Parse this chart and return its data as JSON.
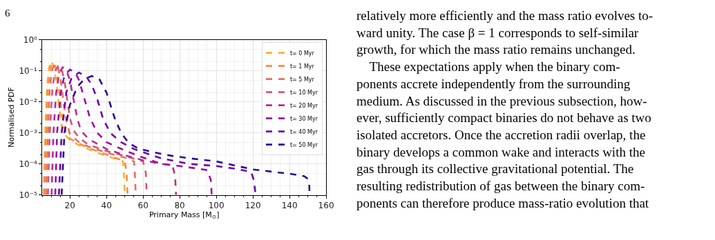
{
  "chart_data": {
    "type": "line",
    "xlabel": "Primary Mass [M$_{⊙}$]",
    "ylabel": "Normalised PDF",
    "log": "y",
    "xlim": [
      5,
      160
    ],
    "ylim": [
      1e-05,
      1
    ],
    "xticks": [
      20,
      40,
      60,
      80,
      100,
      120,
      140,
      160
    ],
    "yticks": [
      {
        "value": 1e-05,
        "label": "10⁻⁵"
      },
      {
        "value": 0.0001,
        "label": "10⁻⁴"
      },
      {
        "value": 0.001,
        "label": "10⁻³"
      },
      {
        "value": 0.01,
        "label": "10⁻²"
      },
      {
        "value": 0.1,
        "label": "10⁻¹"
      },
      {
        "value": 1,
        "label": "10⁰"
      }
    ],
    "grid": true,
    "legend": "top right",
    "marker": "none",
    "line_style": "dashed",
    "series": [
      {
        "name": "t= 0 Myr",
        "color": "#fcb12e",
        "x": [
          5.6,
          6.5,
          7.5,
          8.5,
          9.7,
          11,
          12.5,
          14,
          15.5,
          17,
          20,
          25,
          30,
          35,
          40,
          45,
          49,
          49.5,
          50
        ],
        "values": [
          1e-05,
          0.001,
          0.03,
          0.12,
          0.21,
          0.15,
          0.05,
          0.008,
          0.0018,
          0.0009,
          0.0006,
          0.0004,
          0.0003,
          0.00023,
          0.00018,
          0.000145,
          0.00012,
          5e-05,
          1e-05
        ]
      },
      {
        "name": "t= 1 Myr",
        "color": "#f98c40",
        "x": [
          6,
          7,
          8,
          9.5,
          10.7,
          12,
          13.5,
          15,
          16.5,
          18,
          20,
          25,
          30,
          40,
          50,
          51,
          51.5
        ],
        "values": [
          1e-05,
          0.001,
          0.03,
          0.13,
          0.19,
          0.14,
          0.05,
          0.008,
          0.002,
          0.001,
          0.00065,
          0.00045,
          0.00033,
          0.0002,
          0.00012,
          5e-05,
          1e-05
        ]
      },
      {
        "name": "t= 5 Myr",
        "color": "#ec6c5c",
        "x": [
          7,
          8,
          9,
          10.5,
          12,
          13.5,
          15,
          16.5,
          18,
          20,
          25,
          30,
          40,
          50,
          55,
          55.5,
          56
        ],
        "values": [
          1e-05,
          0.001,
          0.03,
          0.12,
          0.17,
          0.13,
          0.05,
          0.01,
          0.0025,
          0.0009,
          0.0005,
          0.00036,
          0.00023,
          0.00016,
          0.00012,
          5e-05,
          1e-05
        ]
      },
      {
        "name": "t= 10 Myr",
        "color": "#d6566f",
        "x": [
          8,
          9,
          10.5,
          12,
          13.8,
          15.5,
          17,
          18.5,
          20,
          22,
          25,
          30,
          40,
          50,
          60,
          61.5,
          62
        ],
        "values": [
          1e-05,
          0.001,
          0.03,
          0.1,
          0.15,
          0.11,
          0.05,
          0.012,
          0.003,
          0.0012,
          0.0007,
          0.00042,
          0.00026,
          0.00018,
          0.00012,
          5e-05,
          1e-05
        ]
      },
      {
        "name": "t= 20 Myr",
        "color": "#b32d8e",
        "x": [
          10,
          11,
          12.5,
          14,
          16,
          18,
          20,
          22,
          24,
          26,
          30,
          40,
          50,
          60,
          70,
          76,
          77.5,
          78
        ],
        "values": [
          1e-05,
          0.001,
          0.02,
          0.08,
          0.13,
          0.11,
          0.05,
          0.012,
          0.003,
          0.0012,
          0.00065,
          0.0003,
          0.00019,
          0.00013,
          0.0001,
          9e-05,
          4e-05,
          1e-05
        ]
      },
      {
        "name": "t= 30 Myr",
        "color": "#9511a1",
        "x": [
          12,
          13,
          15,
          17,
          20,
          23,
          25,
          28,
          31,
          35,
          40,
          50,
          60,
          70,
          80,
          90,
          95,
          97,
          97.5
        ],
        "values": [
          1e-05,
          0.001,
          0.02,
          0.07,
          0.11,
          0.085,
          0.05,
          0.012,
          0.003,
          0.001,
          0.0005,
          0.00027,
          0.00016,
          0.0001,
          8.5e-05,
          7e-05,
          6.3e-05,
          3e-05,
          1e-05
        ]
      },
      {
        "name": "t= 40 Myr",
        "color": "#6a00a8",
        "x": [
          14,
          15.5,
          18,
          21,
          25,
          29,
          32,
          35,
          38,
          42,
          48,
          55,
          70,
          85,
          100,
          110,
          119,
          120.5,
          121.5
        ],
        "values": [
          1e-05,
          0.001,
          0.02,
          0.06,
          0.088,
          0.065,
          0.035,
          0.012,
          0.003,
          0.001,
          0.0005,
          0.0003,
          0.00015,
          0.0001,
          8.5e-05,
          7e-05,
          5.5e-05,
          3e-05,
          1e-05
        ]
      },
      {
        "name": "t= 50 Myr",
        "color": "#2a0b8e",
        "x": [
          15.5,
          17,
          20,
          24,
          28,
          32,
          36,
          40,
          44.7,
          48,
          52,
          57,
          65,
          76,
          90,
          100,
          120,
          140,
          148,
          150,
          150.8,
          151
        ],
        "values": [
          1e-05,
          0.001,
          0.008,
          0.03,
          0.055,
          0.068,
          0.055,
          0.02,
          0.0027,
          0.001,
          0.00048,
          0.00032,
          0.00024,
          0.00018,
          0.00014,
          0.00012,
          6.6e-05,
          4.8e-05,
          4e-05,
          3.3e-05,
          2e-05,
          1e-05
        ]
      }
    ],
    "annotations": [
      "6",
      "relatively more efficiently and the mass ratio evolves to-\nward unity. The case β = 1 corresponds to self-similar\ngrowth, for which the mass ratio remains unchanged.\n    These expectations apply when the binary com-\nponents accrete independently from the surrounding\nmedium. As discussed in the previous subsection, how-\never, sufficiently compact binaries do not behave as two\nisolated accretors. Once the accretion radii overlap, the\nbinary develops a common wake and interacts with the\ngas through its collective gravitational potential. The\nresulting redistribution of gas between the binary com-\nponents can therefore produce mass-ratio evolution that"
    ]
  }
}
